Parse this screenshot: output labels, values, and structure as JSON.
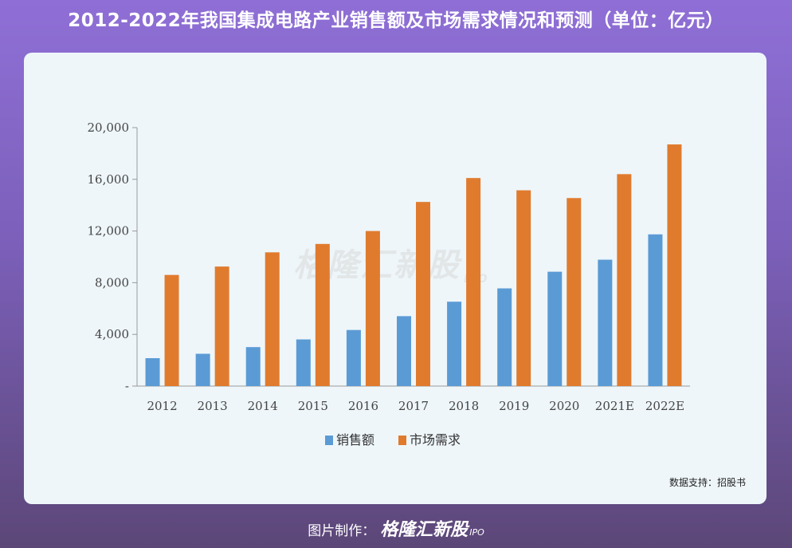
{
  "title": "2012-2022年我国集成电路产业销售额及市场需求情况和预测（单位：亿元）",
  "watermark": {
    "text": "格隆汇新股",
    "suffix": "IPO"
  },
  "source": "数据支持：招股书",
  "footer": {
    "prefix": "图片制作：",
    "brand": "格隆汇新股",
    "brand_suffix": "IPO"
  },
  "colors": {
    "sales": "#5b9bd5",
    "demand": "#e07b2e"
  },
  "chart_data": {
    "type": "bar",
    "title": "2012-2022年我国集成电路产业销售额及市场需求情况和预测（单位：亿元）",
    "categories": [
      "2012",
      "2013",
      "2014",
      "2015",
      "2016",
      "2017",
      "2018",
      "2019",
      "2020",
      "2021E",
      "2022E"
    ],
    "series": [
      {
        "name": "销售额",
        "values": [
          2160,
          2500,
          3015,
          3610,
          4340,
          5410,
          6530,
          7560,
          8850,
          9780,
          11740
        ]
      },
      {
        "name": "市场需求",
        "values": [
          8600,
          9250,
          10350,
          11000,
          12000,
          14250,
          16100,
          15150,
          14550,
          16400,
          18700
        ]
      }
    ],
    "yticks": [
      0,
      4000,
      8000,
      12000,
      16000,
      20000
    ],
    "ytick_labels": [
      "-",
      "4,000",
      "8,000",
      "12,000",
      "16,000",
      "20,000"
    ],
    "ylim": [
      0,
      20000
    ],
    "legend": [
      "销售额",
      "市场需求"
    ],
    "legend_position": "bottom-center"
  }
}
